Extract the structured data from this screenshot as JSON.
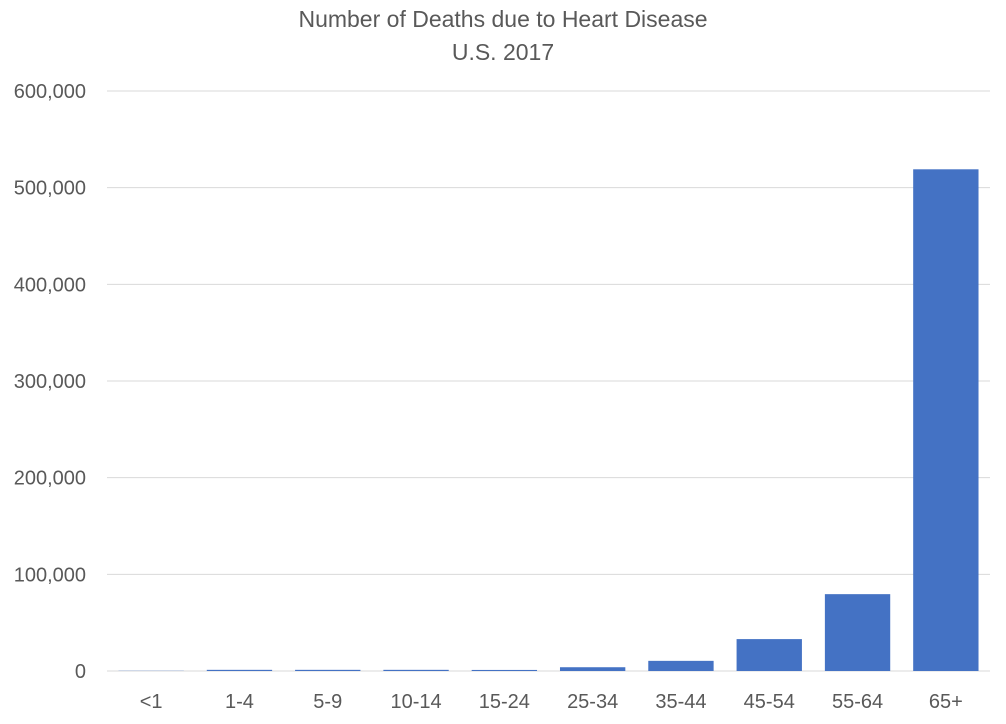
{
  "chart_data": {
    "type": "bar",
    "title": "Number of Deaths due to Heart Disease",
    "subtitle": "U.S. 2017",
    "xlabel": "",
    "ylabel": "",
    "categories": [
      "<1",
      "1-4",
      "5-9",
      "10-14",
      "15-24",
      "25-34",
      "35-44",
      "45-54",
      "55-64",
      "65+"
    ],
    "values": [
      200,
      1200,
      1200,
      1200,
      1100,
      3900,
      10500,
      33000,
      79500,
      519000
    ],
    "ylim": [
      0,
      600000
    ],
    "yticks": [
      0,
      100000,
      200000,
      300000,
      400000,
      500000,
      600000
    ],
    "ytick_labels": [
      "0",
      "100,000",
      "200,000",
      "300,000",
      "400,000",
      "500,000",
      "600,000"
    ],
    "grid": true,
    "legend": "none",
    "bar_color": "#4472c4"
  }
}
